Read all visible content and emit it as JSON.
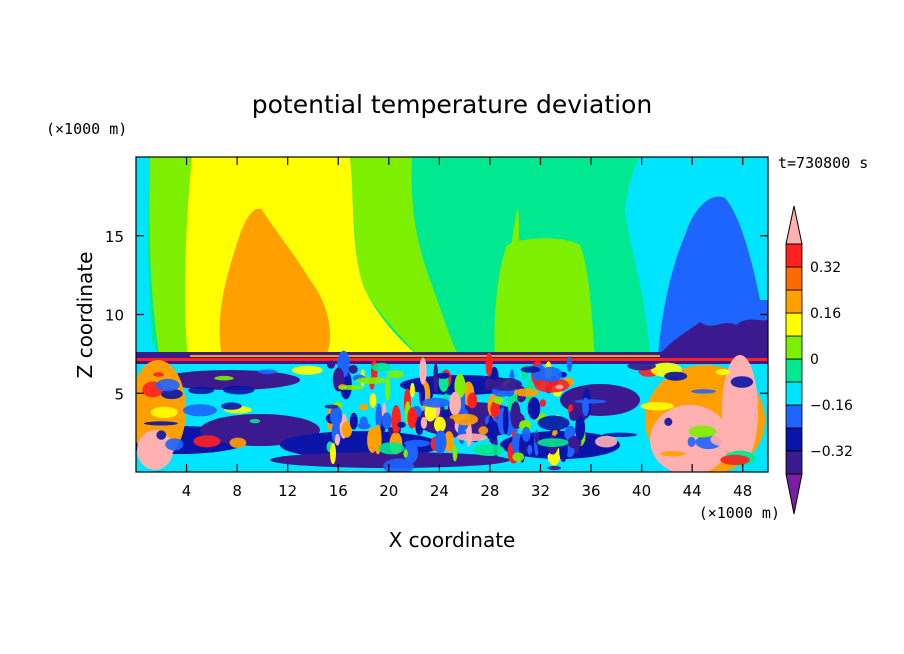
{
  "chart_data": {
    "type": "heatmap",
    "subtype": "filled-contour",
    "title": "potential temperature deviation",
    "xlabel": "X coordinate",
    "ylabel": "Z coordinate",
    "x_unit_label": "(×1000 m)",
    "y_unit_label": "(×1000 m)",
    "time_label": "t=730800 s",
    "xlim": [
      0,
      50
    ],
    "ylim": [
      0,
      20
    ],
    "x_ticks": [
      4,
      8,
      12,
      16,
      20,
      24,
      28,
      32,
      36,
      40,
      44,
      48
    ],
    "y_ticks": [
      5,
      10,
      15
    ],
    "colorbar": {
      "levels": [
        -0.48,
        -0.4,
        -0.32,
        -0.24,
        -0.16,
        -0.08,
        0,
        0.08,
        0.16,
        0.24,
        0.32,
        0.4
      ],
      "labeled_levels": [
        {
          "value": 0.32,
          "label": "0.32"
        },
        {
          "value": 0.16,
          "label": "0.16"
        },
        {
          "value": 0,
          "label": "0"
        },
        {
          "value": -0.16,
          "label": "−0.16"
        },
        {
          "value": -0.32,
          "label": "−0.32"
        }
      ],
      "colors_low_to_high": [
        "#7b1fa2",
        "#3a1a8e",
        "#0a14a8",
        "#1e64ff",
        "#00e5ff",
        "#00e890",
        "#7cf000",
        "#ffff00",
        "#ffa000",
        "#ff6a00",
        "#ff2020",
        "#ffb0b0"
      ],
      "extend": "both"
    },
    "regions": [
      {
        "name": "upper-background",
        "value": -0.04
      },
      {
        "name": "yellow-band",
        "value": 0.12
      },
      {
        "name": "orange-core",
        "value": 0.2
      },
      {
        "name": "green-plume-right",
        "value": 0.04
      },
      {
        "name": "cyan-right-upper",
        "value": -0.12
      },
      {
        "name": "blue-core-right",
        "value": -0.24
      },
      {
        "name": "navy-base-right",
        "value": -0.36
      },
      {
        "name": "inversion-layer",
        "value": -0.36
      },
      {
        "name": "boundary-layer-turbulence",
        "value": 0
      }
    ]
  }
}
